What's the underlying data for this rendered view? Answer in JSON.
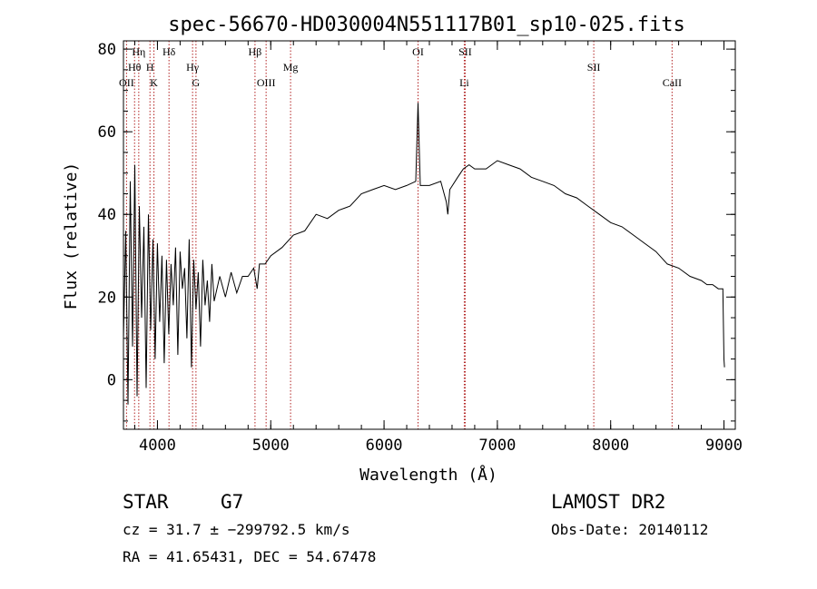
{
  "chart_data": {
    "type": "line",
    "title": "spec-56670-HD030004N551117B01_sp10-025.fits",
    "xlabel": "Wavelength (Å)",
    "ylabel": "Flux (relative)",
    "xlim": [
      3700,
      9100
    ],
    "ylim": [
      -12,
      82
    ],
    "xticks": [
      "4000",
      "5000",
      "6000",
      "7000",
      "8000",
      "9000"
    ],
    "yticks": [
      "0",
      "20",
      "40",
      "60",
      "80"
    ],
    "grid": false,
    "series": [
      {
        "color": "#000000",
        "x": [
          3700,
          3720,
          3740,
          3760,
          3780,
          3800,
          3820,
          3840,
          3860,
          3880,
          3900,
          3920,
          3940,
          3960,
          3980,
          4000,
          4020,
          4040,
          4060,
          4080,
          4100,
          4120,
          4140,
          4160,
          4180,
          4200,
          4220,
          4240,
          4260,
          4280,
          4300,
          4320,
          4340,
          4360,
          4380,
          4400,
          4420,
          4440,
          4460,
          4480,
          4500,
          4550,
          4600,
          4650,
          4700,
          4750,
          4800,
          4850,
          4880,
          4900,
          4950,
          5000,
          5100,
          5200,
          5300,
          5400,
          5500,
          5600,
          5700,
          5800,
          5900,
          6000,
          6100,
          6200,
          6280,
          6300,
          6320,
          6400,
          6500,
          6550,
          6563,
          6580,
          6650,
          6700,
          6750,
          6800,
          6900,
          7000,
          7100,
          7200,
          7300,
          7400,
          7500,
          7600,
          7700,
          7800,
          7900,
          8000,
          8100,
          8200,
          8300,
          8400,
          8500,
          8600,
          8700,
          8800,
          8850,
          8900,
          8950,
          8990,
          9000,
          9005
        ],
        "values": [
          10,
          36,
          -6,
          48,
          8,
          52,
          -4,
          42,
          15,
          37,
          -2,
          40,
          12,
          34,
          5,
          33,
          14,
          30,
          4,
          29,
          11,
          28,
          18,
          32,
          6,
          31,
          22,
          27,
          10,
          34,
          3,
          29,
          17,
          26,
          8,
          29,
          18,
          24,
          14,
          28,
          19,
          25,
          20,
          26,
          21,
          25,
          25,
          27,
          22,
          28,
          28,
          30,
          32,
          35,
          36,
          40,
          39,
          41,
          42,
          45,
          46,
          47,
          46,
          47,
          48,
          67,
          47,
          47,
          48,
          43,
          40,
          46,
          49,
          51,
          52,
          51,
          51,
          53,
          52,
          51,
          49,
          48,
          47,
          45,
          44,
          42,
          40,
          38,
          37,
          35,
          33,
          31,
          28,
          27,
          25,
          24,
          23,
          23,
          22,
          22,
          5,
          3
        ]
      }
    ],
    "line_markers": [
      {
        "label": "OII",
        "x": 3727,
        "row": 3
      },
      {
        "label": "Hθ",
        "x": 3798,
        "row": 2
      },
      {
        "label": "Hη",
        "x": 3835,
        "row": 1
      },
      {
        "label": "H",
        "x": 3934,
        "row": 2
      },
      {
        "label": "K",
        "x": 3969,
        "row": 3
      },
      {
        "label": "Hδ",
        "x": 4102,
        "row": 1
      },
      {
        "label": "Hγ",
        "x": 4310,
        "row": 2
      },
      {
        "label": "G",
        "x": 4340,
        "row": 3
      },
      {
        "label": "Hβ",
        "x": 4861,
        "row": 1
      },
      {
        "label": "OIII",
        "x": 4959,
        "row": 3
      },
      {
        "label": "Mg",
        "x": 5175,
        "row": 2
      },
      {
        "label": "OI",
        "x": 6300,
        "row": 1
      },
      {
        "label": "SII",
        "x": 6716,
        "row": 1
      },
      {
        "label": "Li",
        "x": 6708,
        "row": 3
      },
      {
        "label": "SII",
        "x": 7851,
        "row": 2
      },
      {
        "label": "CaII",
        "x": 8542,
        "row": 3
      }
    ]
  },
  "footer": {
    "object_class": "STAR",
    "subclass": "G7",
    "survey": "LAMOST DR2",
    "cz": "cz = 31.7 ± −299792.5 km/s",
    "obs_date": "Obs-Date: 20140112",
    "coords": "RA =  41.65431, DEC =  54.67478"
  }
}
